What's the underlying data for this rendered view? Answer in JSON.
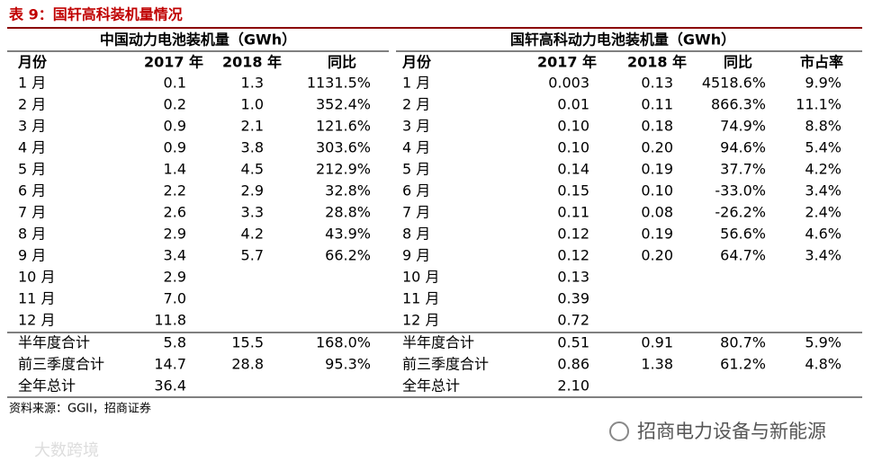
{
  "title": "表 9：国轩高科装机量情况",
  "table": {
    "groups": [
      "中国动力电池装机量（GWh）",
      "国轩高科动力电池装机量（GWh）"
    ],
    "columns": [
      "月份",
      "2017 年",
      "2018 年",
      "同比",
      "月份",
      "2017 年",
      "2018 年",
      "同比",
      "市占率"
    ],
    "rows": [
      [
        "1 月",
        "0.1",
        "1.3",
        "1131.5%",
        "1 月",
        "0.003",
        "0.13",
        "4518.6%",
        "9.9%"
      ],
      [
        "2 月",
        "0.2",
        "1.0",
        "352.4%",
        "2 月",
        "0.01",
        "0.11",
        "866.3%",
        "11.1%"
      ],
      [
        "3 月",
        "0.9",
        "2.1",
        "121.6%",
        "3 月",
        "0.10",
        "0.18",
        "74.9%",
        "8.8%"
      ],
      [
        "4 月",
        "0.9",
        "3.8",
        "303.6%",
        "4 月",
        "0.10",
        "0.20",
        "94.6%",
        "5.4%"
      ],
      [
        "5 月",
        "1.4",
        "4.5",
        "212.9%",
        "5 月",
        "0.14",
        "0.19",
        "37.7%",
        "4.2%"
      ],
      [
        "6 月",
        "2.2",
        "2.9",
        "32.8%",
        "6 月",
        "0.15",
        "0.10",
        "-33.0%",
        "3.4%"
      ],
      [
        "7 月",
        "2.6",
        "3.3",
        "28.8%",
        "7 月",
        "0.11",
        "0.08",
        "-26.2%",
        "2.4%"
      ],
      [
        "8 月",
        "2.9",
        "4.2",
        "43.9%",
        "8 月",
        "0.12",
        "0.19",
        "56.6%",
        "4.6%"
      ],
      [
        "9 月",
        "3.4",
        "5.7",
        "66.2%",
        "9 月",
        "0.12",
        "0.20",
        "64.7%",
        "3.4%"
      ],
      [
        "10 月",
        "2.9",
        null,
        null,
        "10 月",
        "0.13",
        null,
        null,
        null
      ],
      [
        "11 月",
        "7.0",
        null,
        null,
        "11 月",
        "0.39",
        null,
        null,
        null
      ],
      [
        "12 月",
        "11.8",
        null,
        null,
        "12 月",
        "0.72",
        null,
        null,
        null
      ],
      [
        "半年度合计",
        "5.8",
        "15.5",
        "168.0%",
        "半年度合计",
        "0.51",
        "0.91",
        "80.7%",
        "5.9%"
      ],
      [
        "前三季度合计",
        "14.7",
        "28.8",
        "95.3%",
        "前三季度合计",
        "0.86",
        "1.38",
        "61.2%",
        "4.8%"
      ],
      [
        "全年总计",
        "36.4",
        null,
        null,
        "全年总计",
        "2.10",
        null,
        null,
        null
      ]
    ]
  },
  "source": "资料来源：GGII，招商证券",
  "watermarks": [
    "招商电力设备与新能源",
    "大数跨境"
  ]
}
